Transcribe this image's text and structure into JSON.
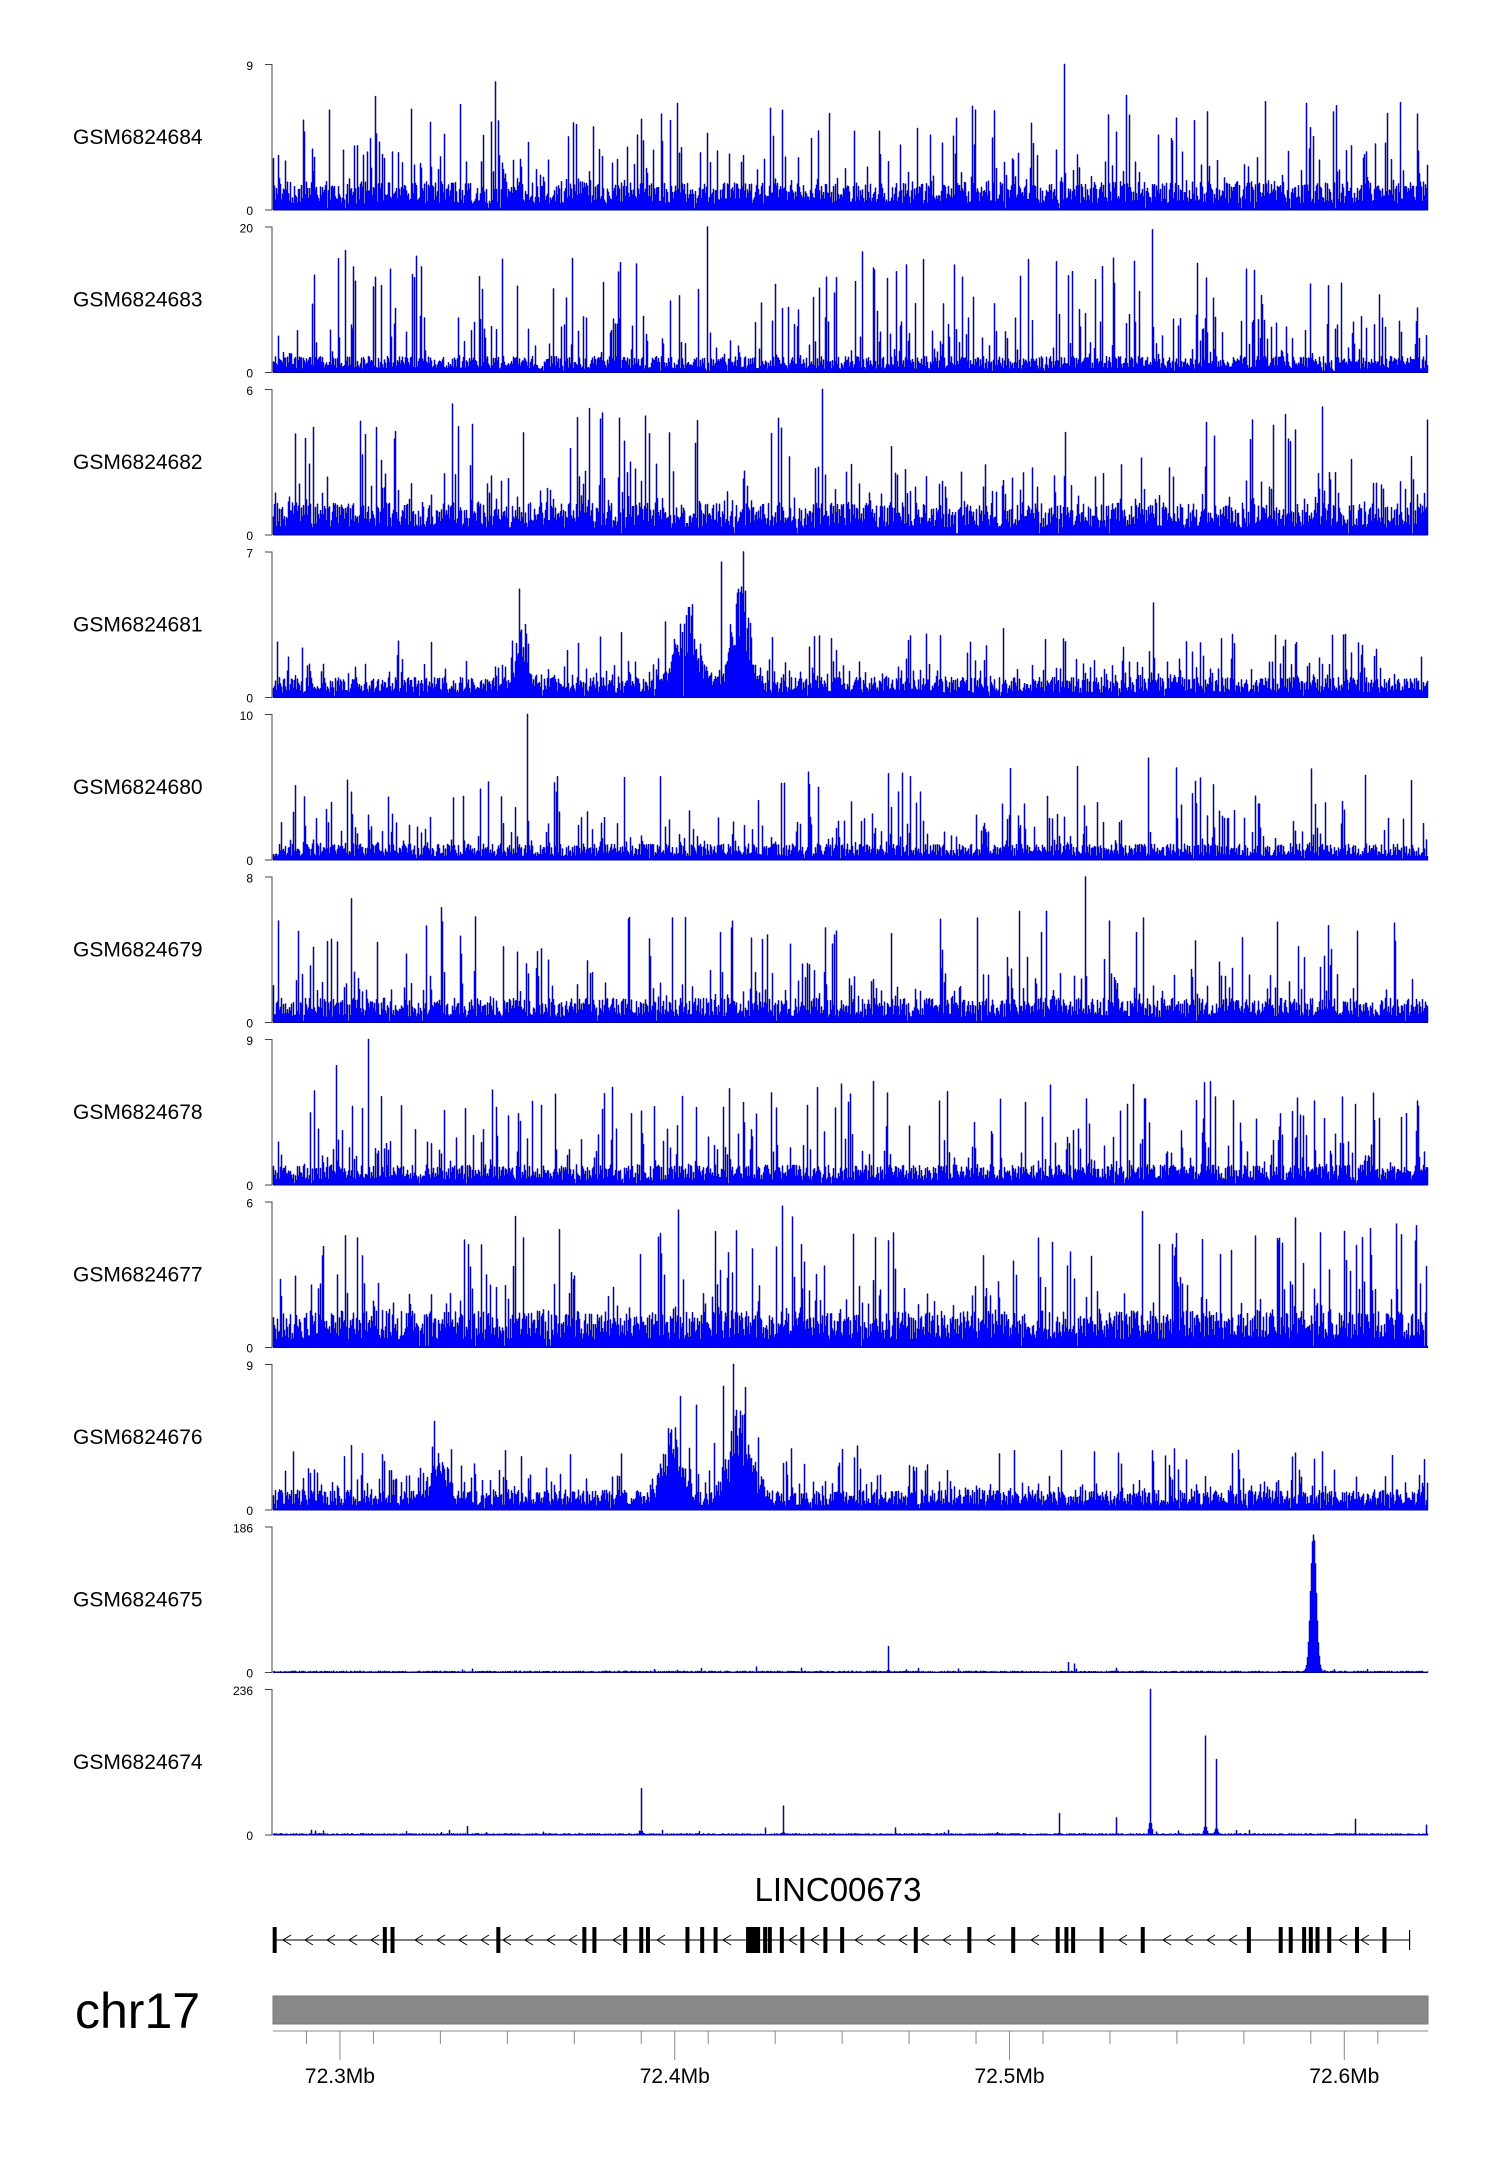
{
  "chart_data": {
    "type": "area",
    "chromosome": "chr17",
    "xlim_mb": [
      72.28,
      72.625
    ],
    "series_color": "#0000ff",
    "series_outline_color": "#00008b",
    "tracks": [
      {
        "name": "GSM6824684",
        "ymax": 9,
        "ymin": 0,
        "ymax_label": "9",
        "ymin_label": "0",
        "pattern": "noise",
        "base": 0.14,
        "spike_max": 0.6,
        "peaks": [
          {
            "x": 72.5165,
            "h": 1.0
          },
          {
            "x": 72.3465,
            "h": 0.88
          },
          {
            "x": 72.3107,
            "h": 0.78
          }
        ]
      },
      {
        "name": "GSM6824683",
        "ymax": 20,
        "ymin": 0,
        "ymax_label": "20",
        "ymin_label": "0",
        "pattern": "noise",
        "base": 0.08,
        "spike_max": 0.75,
        "peaks": [
          {
            "x": 72.4097,
            "h": 1.0
          },
          {
            "x": 72.5428,
            "h": 0.98
          }
        ]
      },
      {
        "name": "GSM6824682",
        "ymax": 6,
        "ymin": 0,
        "ymax_label": "6",
        "ymin_label": "0",
        "pattern": "noise",
        "base": 0.16,
        "spike_max": 0.7,
        "peaks": [
          {
            "x": 72.4441,
            "h": 1.0
          },
          {
            "x": 72.3335,
            "h": 0.9
          }
        ]
      },
      {
        "name": "GSM6824681",
        "ymax": 7,
        "ymin": 0,
        "ymax_label": "7",
        "ymin_label": "0",
        "pattern": "enriched",
        "base": 0.1,
        "spike_max": 0.35,
        "regions": [
          {
            "center": 72.3545,
            "width": 0.0025,
            "height": 0.45
          },
          {
            "center": 72.4035,
            "width": 0.0045,
            "height": 0.6
          },
          {
            "center": 72.4195,
            "width": 0.0035,
            "height": 0.75
          }
        ],
        "peaks": [
          {
            "x": 72.4205,
            "h": 1.0
          },
          {
            "x": 72.4141,
            "h": 0.93
          },
          {
            "x": 72.5429,
            "h": 0.65
          }
        ]
      },
      {
        "name": "GSM6824680",
        "ymax": 10,
        "ymin": 0,
        "ymax_label": "10",
        "ymin_label": "0",
        "pattern": "noise",
        "base": 0.08,
        "spike_max": 0.55,
        "peaks": [
          {
            "x": 72.3561,
            "h": 1.0
          },
          {
            "x": 72.5415,
            "h": 0.7
          }
        ]
      },
      {
        "name": "GSM6824679",
        "ymax": 8,
        "ymin": 0,
        "ymax_label": "8",
        "ymin_label": "0",
        "pattern": "noise",
        "base": 0.12,
        "spike_max": 0.65,
        "peaks": [
          {
            "x": 72.5228,
            "h": 1.0
          },
          {
            "x": 72.3035,
            "h": 0.85
          }
        ]
      },
      {
        "name": "GSM6824678",
        "ymax": 9,
        "ymin": 0,
        "ymax_label": "9",
        "ymin_label": "0",
        "pattern": "noise",
        "base": 0.1,
        "spike_max": 0.6,
        "peaks": [
          {
            "x": 72.3085,
            "h": 1.0
          },
          {
            "x": 72.2991,
            "h": 0.82
          }
        ]
      },
      {
        "name": "GSM6824677",
        "ymax": 6,
        "ymin": 0,
        "ymax_label": "6",
        "ymin_label": "0",
        "pattern": "noise",
        "base": 0.18,
        "spike_max": 0.72,
        "peaks": [
          {
            "x": 72.4322,
            "h": 0.97
          },
          {
            "x": 72.3524,
            "h": 0.9
          }
        ]
      },
      {
        "name": "GSM6824676",
        "ymax": 9,
        "ymin": 0,
        "ymax_label": "9",
        "ymin_label": "0",
        "pattern": "enriched",
        "base": 0.1,
        "spike_max": 0.35,
        "regions": [
          {
            "center": 72.3295,
            "width": 0.003,
            "height": 0.35
          },
          {
            "center": 72.3995,
            "width": 0.004,
            "height": 0.5
          },
          {
            "center": 72.4195,
            "width": 0.0045,
            "height": 0.65
          }
        ],
        "peaks": [
          {
            "x": 72.4175,
            "h": 1.0
          },
          {
            "x": 72.4145,
            "h": 0.85
          },
          {
            "x": 72.4065,
            "h": 0.72
          }
        ]
      },
      {
        "name": "GSM6824675",
        "ymax": 186,
        "ymin": 0,
        "ymax_label": "186",
        "ymin_label": "0",
        "pattern": "flat",
        "base": 0.008,
        "spike_max": 0.03,
        "broad": [
          {
            "center": 72.5908,
            "width": 0.0012,
            "height": 0.97
          }
        ],
        "peaks": [
          {
            "x": 72.464,
            "h": 0.18
          },
          {
            "x": 72.5175,
            "h": 0.07
          },
          {
            "x": 72.5195,
            "h": 0.06
          },
          {
            "x": 72.4245,
            "h": 0.04
          },
          {
            "x": 72.408,
            "h": 0.03
          }
        ]
      },
      {
        "name": "GSM6824674",
        "ymax": 236,
        "ymin": 0,
        "ymax_label": "236",
        "ymin_label": "0",
        "pattern": "flat",
        "base": 0.008,
        "spike_max": 0.03,
        "peaks": [
          {
            "x": 72.542,
            "h": 1.0
          },
          {
            "x": 72.5585,
            "h": 0.68
          },
          {
            "x": 72.5618,
            "h": 0.52
          },
          {
            "x": 72.39,
            "h": 0.32
          },
          {
            "x": 72.4325,
            "h": 0.2
          },
          {
            "x": 72.532,
            "h": 0.12
          },
          {
            "x": 72.515,
            "h": 0.15
          },
          {
            "x": 72.6033,
            "h": 0.11
          },
          {
            "x": 72.338,
            "h": 0.06
          },
          {
            "x": 72.427,
            "h": 0.05
          },
          {
            "x": 72.466,
            "h": 0.05
          },
          {
            "x": 72.6245,
            "h": 0.07
          }
        ]
      }
    ],
    "gene": {
      "name": "LINC00673",
      "strand": "-",
      "start": 72.28,
      "end": 72.6195,
      "exons": [
        72.2805,
        72.3134,
        72.3157,
        72.3473,
        72.373,
        72.376,
        72.3852,
        72.39,
        72.392,
        72.4038,
        72.4082,
        72.4122,
        72.427,
        72.432,
        72.4381,
        72.445,
        72.45,
        72.472,
        72.488,
        72.5011,
        72.5144,
        72.517,
        72.519,
        72.5275,
        72.5398,
        72.5715,
        72.581,
        72.584,
        72.588,
        72.59,
        72.592,
        72.5955,
        72.6038,
        72.612
      ],
      "exon_blocks": [
        {
          "start": 72.4213,
          "end": 72.4255
        },
        {
          "start": 72.4278,
          "end": 72.4287
        }
      ]
    },
    "axis": {
      "ticks_mb": [
        72.29,
        72.31,
        72.33,
        72.35,
        72.37,
        72.39,
        72.41,
        72.43,
        72.45,
        72.47,
        72.49,
        72.51,
        72.53,
        72.55,
        72.57,
        72.59,
        72.61
      ],
      "labeled_ticks": [
        {
          "x": 72.3,
          "label": "72.3Mb"
        },
        {
          "x": 72.4,
          "label": "72.4Mb"
        },
        {
          "x": 72.5,
          "label": "72.5Mb"
        },
        {
          "x": 72.6,
          "label": "72.6Mb"
        }
      ]
    }
  }
}
